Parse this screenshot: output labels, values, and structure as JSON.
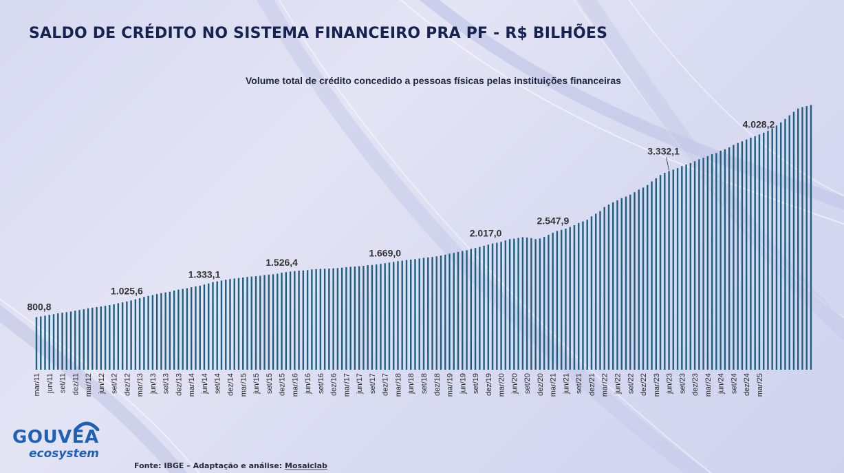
{
  "title": "SALDO DE CRÉDITO NO SISTEMA FINANCEIRO PRA PF - R$ BILHÕES",
  "subtitle": "Volume total de crédito concedido a pessoas físicas pelas instituições financeiras",
  "logo": {
    "main": "GOUVEA",
    "sub": "ecosystem"
  },
  "source": {
    "prefix": "Fonte: IBGE – Adaptação e análise: ",
    "org": "Mosaiclab"
  },
  "colors": {
    "bar": "#1d5f80",
    "title": "#16224f",
    "brand": "#1f5fb4"
  },
  "chart_data": {
    "type": "bar",
    "start": "mar/11",
    "end": "mar/25",
    "frequency": "monthly",
    "ylim": [
      0,
      4400
    ],
    "grid": false,
    "legend": "none",
    "tick_labels": [
      "mar/11",
      "jun/11",
      "set/11",
      "dez/11",
      "mar/12",
      "jun/12",
      "set/12",
      "dez/12",
      "mar/13",
      "jun/13",
      "set/13",
      "dez/13",
      "mar/14",
      "jun/14",
      "set/14",
      "dez/14",
      "mar/15",
      "jun/15",
      "set/15",
      "dez/15",
      "mar/16",
      "jun/16",
      "set/16",
      "dez/16",
      "mar/17",
      "jun/17",
      "set/17",
      "dez/17",
      "mar/18",
      "jun/18",
      "set/18",
      "dez/18",
      "mar/19",
      "jun/19",
      "set/19",
      "dez/19",
      "mar/20",
      "jun/20",
      "set/20",
      "dez/20",
      "mar/21",
      "jun/21",
      "set/21",
      "dez/21",
      "mar/22",
      "jun/22",
      "set/22",
      "dez/22",
      "mar/23",
      "jun/23",
      "set/23",
      "dez/23",
      "mar/24",
      "jun/24",
      "set/24",
      "dez/24",
      "mar/25"
    ],
    "annotations": [
      {
        "period": "mar/11",
        "label": "800,8"
      },
      {
        "period": "dez/12",
        "label": "1.025,6"
      },
      {
        "period": "jun/14",
        "label": "1.333,1"
      },
      {
        "period": "dez/15",
        "label": "1.526,4"
      },
      {
        "period": "dez/17",
        "label": "1.669,0"
      },
      {
        "period": "jan/20",
        "label": "2.017,0"
      },
      {
        "period": "abr/21",
        "label": "2.547,9"
      },
      {
        "period": "jun/23",
        "label": "3.332,1"
      },
      {
        "period": "mar/25",
        "label": "4.028,2"
      }
    ],
    "values": [
      800.8,
      810.5,
      822.0,
      834.9,
      846.0,
      857.9,
      867.1,
      876.3,
      885.6,
      897.7,
      909.4,
      920.8,
      934.8,
      944.0,
      953.9,
      962.6,
      973.4,
      983.8,
      995.4,
      1011.8,
      1025.6,
      1040.2,
      1054.0,
      1072.0,
      1088.1,
      1107.5,
      1123.4,
      1136.0,
      1152.1,
      1165.4,
      1176.6,
      1187.0,
      1204.2,
      1218.5,
      1229.2,
      1240.4,
      1257.2,
      1268.0,
      1279.5,
      1295.9,
      1312.8,
      1333.1,
      1344.5,
      1357.3,
      1368.6,
      1380.5,
      1388.1,
      1395.3,
      1402.7,
      1412.3,
      1418.2,
      1424.1,
      1429.9,
      1440.6,
      1447.3,
      1453.6,
      1460.8,
      1475.6,
      1484.4,
      1493.6,
      1501.6,
      1507.2,
      1510.4,
      1516.0,
      1526.4,
      1531.1,
      1534.4,
      1536.6,
      1539.9,
      1543.6,
      1546.7,
      1552.8,
      1561.3,
      1566.2,
      1570.3,
      1575.3,
      1580.7,
      1591.1,
      1593.9,
      1601.3,
      1611.7,
      1620.6,
      1630.9,
      1641.0,
      1651.6,
      1659.6,
      1669.0,
      1675.9,
      1683.3,
      1692.4,
      1702.6,
      1709.2,
      1715.5,
      1725.8,
      1736.9,
      1750.6,
      1766.5,
      1777.6,
      1792.8,
      1806.3,
      1818.1,
      1838.5,
      1852.2,
      1868.7,
      1886.8,
      1903.6,
      1920.8,
      1932.0,
      1946.3,
      1967.6,
      1988.0,
      1993.5,
      2006.5,
      2017.0,
      2011.6,
      2002.9,
      1988.4,
      1996.4,
      2021.0,
      2052.1,
      2083.5,
      2111.2,
      2128.5,
      2146.6,
      2171.7,
      2199.7,
      2233.0,
      2257.2,
      2283.1,
      2333.7,
      2374.2,
      2412.7,
      2475.7,
      2513.2,
      2547.9,
      2577.8,
      2610.9,
      2634.5,
      2663.9,
      2700.9,
      2741.1,
      2771.2,
      2811.4,
      2865.6,
      2914.1,
      2962.6,
      2995.9,
      3023.9,
      3044.3,
      3068.4,
      3098.5,
      3121.9,
      3143.8,
      3172.4,
      3202.9,
      3224.0,
      3250.6,
      3280.1,
      3296.9,
      3332.1,
      3354.9,
      3383.9,
      3420.4,
      3450.2,
      3475.4,
      3503.0,
      3530.5,
      3554.1,
      3579.4,
      3606.4,
      3636.0,
      3671.8,
      3716.2,
      3764.1,
      3816.5,
      3870.8,
      3925.2,
      3974.0,
      3996.1,
      4012.2,
      4028.2
    ]
  }
}
